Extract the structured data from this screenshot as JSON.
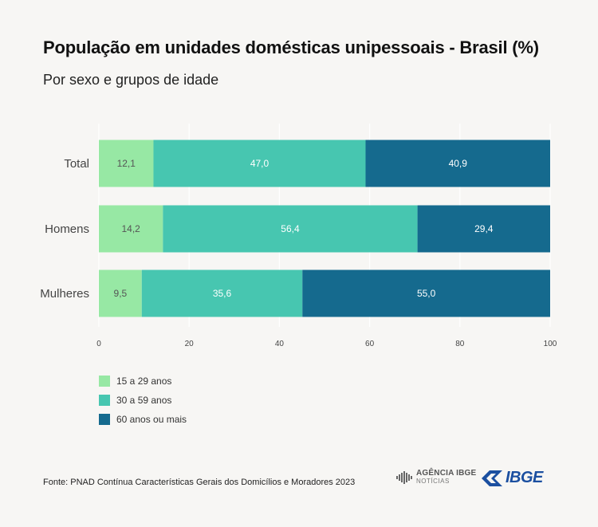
{
  "header": {
    "title": "População em unidades domésticas unipessoais - Brasil (%)",
    "subtitle": "Por sexo e grupos de idade"
  },
  "chart_data": {
    "type": "bar",
    "orientation": "horizontal",
    "stacked": true,
    "categories": [
      "Total",
      "Homens",
      "Mulheres"
    ],
    "series": [
      {
        "name": "15 a 29 anos",
        "color": "#97e8a4",
        "values": [
          12.1,
          14.2,
          9.5
        ],
        "labels": [
          "12,1",
          "14,2",
          "9,5"
        ]
      },
      {
        "name": "30 a 59 anos",
        "color": "#47c6b0",
        "values": [
          47.0,
          56.4,
          35.6
        ],
        "labels": [
          "47,0",
          "56,4",
          "35,6"
        ]
      },
      {
        "name": "60 anos ou mais",
        "color": "#156a8e",
        "values": [
          40.9,
          29.4,
          55.0
        ],
        "labels": [
          "40,9",
          "29,4",
          "55,0"
        ]
      }
    ],
    "xlim": [
      0,
      100
    ],
    "xticks": [
      0,
      20,
      40,
      60,
      80,
      100
    ],
    "grid": true,
    "legend_position": "bottom-left"
  },
  "footer": {
    "source": "Fonte: PNAD Contínua Características Gerais dos Domicílios e Moradores 2023",
    "agencia_top": "AGÊNCIA IBGE",
    "agencia_bottom": "NOTÍCIAS",
    "ibge": "IBGE"
  }
}
